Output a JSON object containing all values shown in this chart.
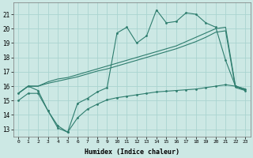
{
  "xlabel": "Humidex (Indice chaleur)",
  "bg_color": "#cce8e4",
  "grid_color": "#aad4d0",
  "line_color": "#2e7d6e",
  "xlim": [
    -0.5,
    23.5
  ],
  "ylim": [
    12.5,
    21.8
  ],
  "yticks": [
    13,
    14,
    15,
    16,
    17,
    18,
    19,
    20,
    21
  ],
  "xticks": [
    0,
    1,
    2,
    3,
    4,
    5,
    6,
    7,
    8,
    9,
    10,
    11,
    12,
    13,
    14,
    15,
    16,
    17,
    18,
    19,
    20,
    21,
    22,
    23
  ],
  "series1_x": [
    0,
    1,
    2,
    3,
    4,
    5,
    6,
    7,
    8,
    9,
    10,
    11,
    12,
    13,
    14,
    15,
    16,
    17,
    18,
    19,
    20,
    21,
    22,
    23
  ],
  "series1_y": [
    15.5,
    16.0,
    16.0,
    16.3,
    16.5,
    16.6,
    16.8,
    17.0,
    17.2,
    17.4,
    17.6,
    17.8,
    18.0,
    18.2,
    18.4,
    18.6,
    18.8,
    19.1,
    19.4,
    19.7,
    20.0,
    20.1,
    16.0,
    15.8
  ],
  "series2_x": [
    0,
    1,
    2,
    3,
    4,
    5,
    6,
    7,
    8,
    9,
    10,
    11,
    12,
    13,
    14,
    15,
    16,
    17,
    18,
    19,
    20,
    21,
    22,
    23
  ],
  "series2_y": [
    15.5,
    16.0,
    16.0,
    16.2,
    16.35,
    16.5,
    16.65,
    16.85,
    17.05,
    17.2,
    17.4,
    17.6,
    17.8,
    18.0,
    18.2,
    18.4,
    18.6,
    18.85,
    19.1,
    19.4,
    19.75,
    19.85,
    15.9,
    15.7
  ],
  "series3_x": [
    0,
    1,
    2,
    3,
    4,
    5,
    6,
    7,
    8,
    9,
    10,
    11,
    12,
    13,
    14,
    15,
    16,
    17,
    18,
    19,
    20,
    21,
    22,
    23
  ],
  "series3_y": [
    15.5,
    16.0,
    15.7,
    14.3,
    13.1,
    12.8,
    14.8,
    15.15,
    15.6,
    15.9,
    19.7,
    20.1,
    19.0,
    19.5,
    21.3,
    20.4,
    20.5,
    21.1,
    21.0,
    20.4,
    20.1,
    17.8,
    16.0,
    15.8
  ],
  "series4_x": [
    0,
    1,
    2,
    3,
    4,
    5,
    6,
    7,
    8,
    9,
    10,
    11,
    12,
    13,
    14,
    15,
    16,
    17,
    18,
    19,
    20,
    21,
    22,
    23
  ],
  "series4_y": [
    15.0,
    15.5,
    15.5,
    14.3,
    13.25,
    12.8,
    13.8,
    14.4,
    14.75,
    15.05,
    15.2,
    15.3,
    15.4,
    15.5,
    15.6,
    15.65,
    15.7,
    15.75,
    15.8,
    15.9,
    16.0,
    16.1,
    16.0,
    15.7
  ]
}
